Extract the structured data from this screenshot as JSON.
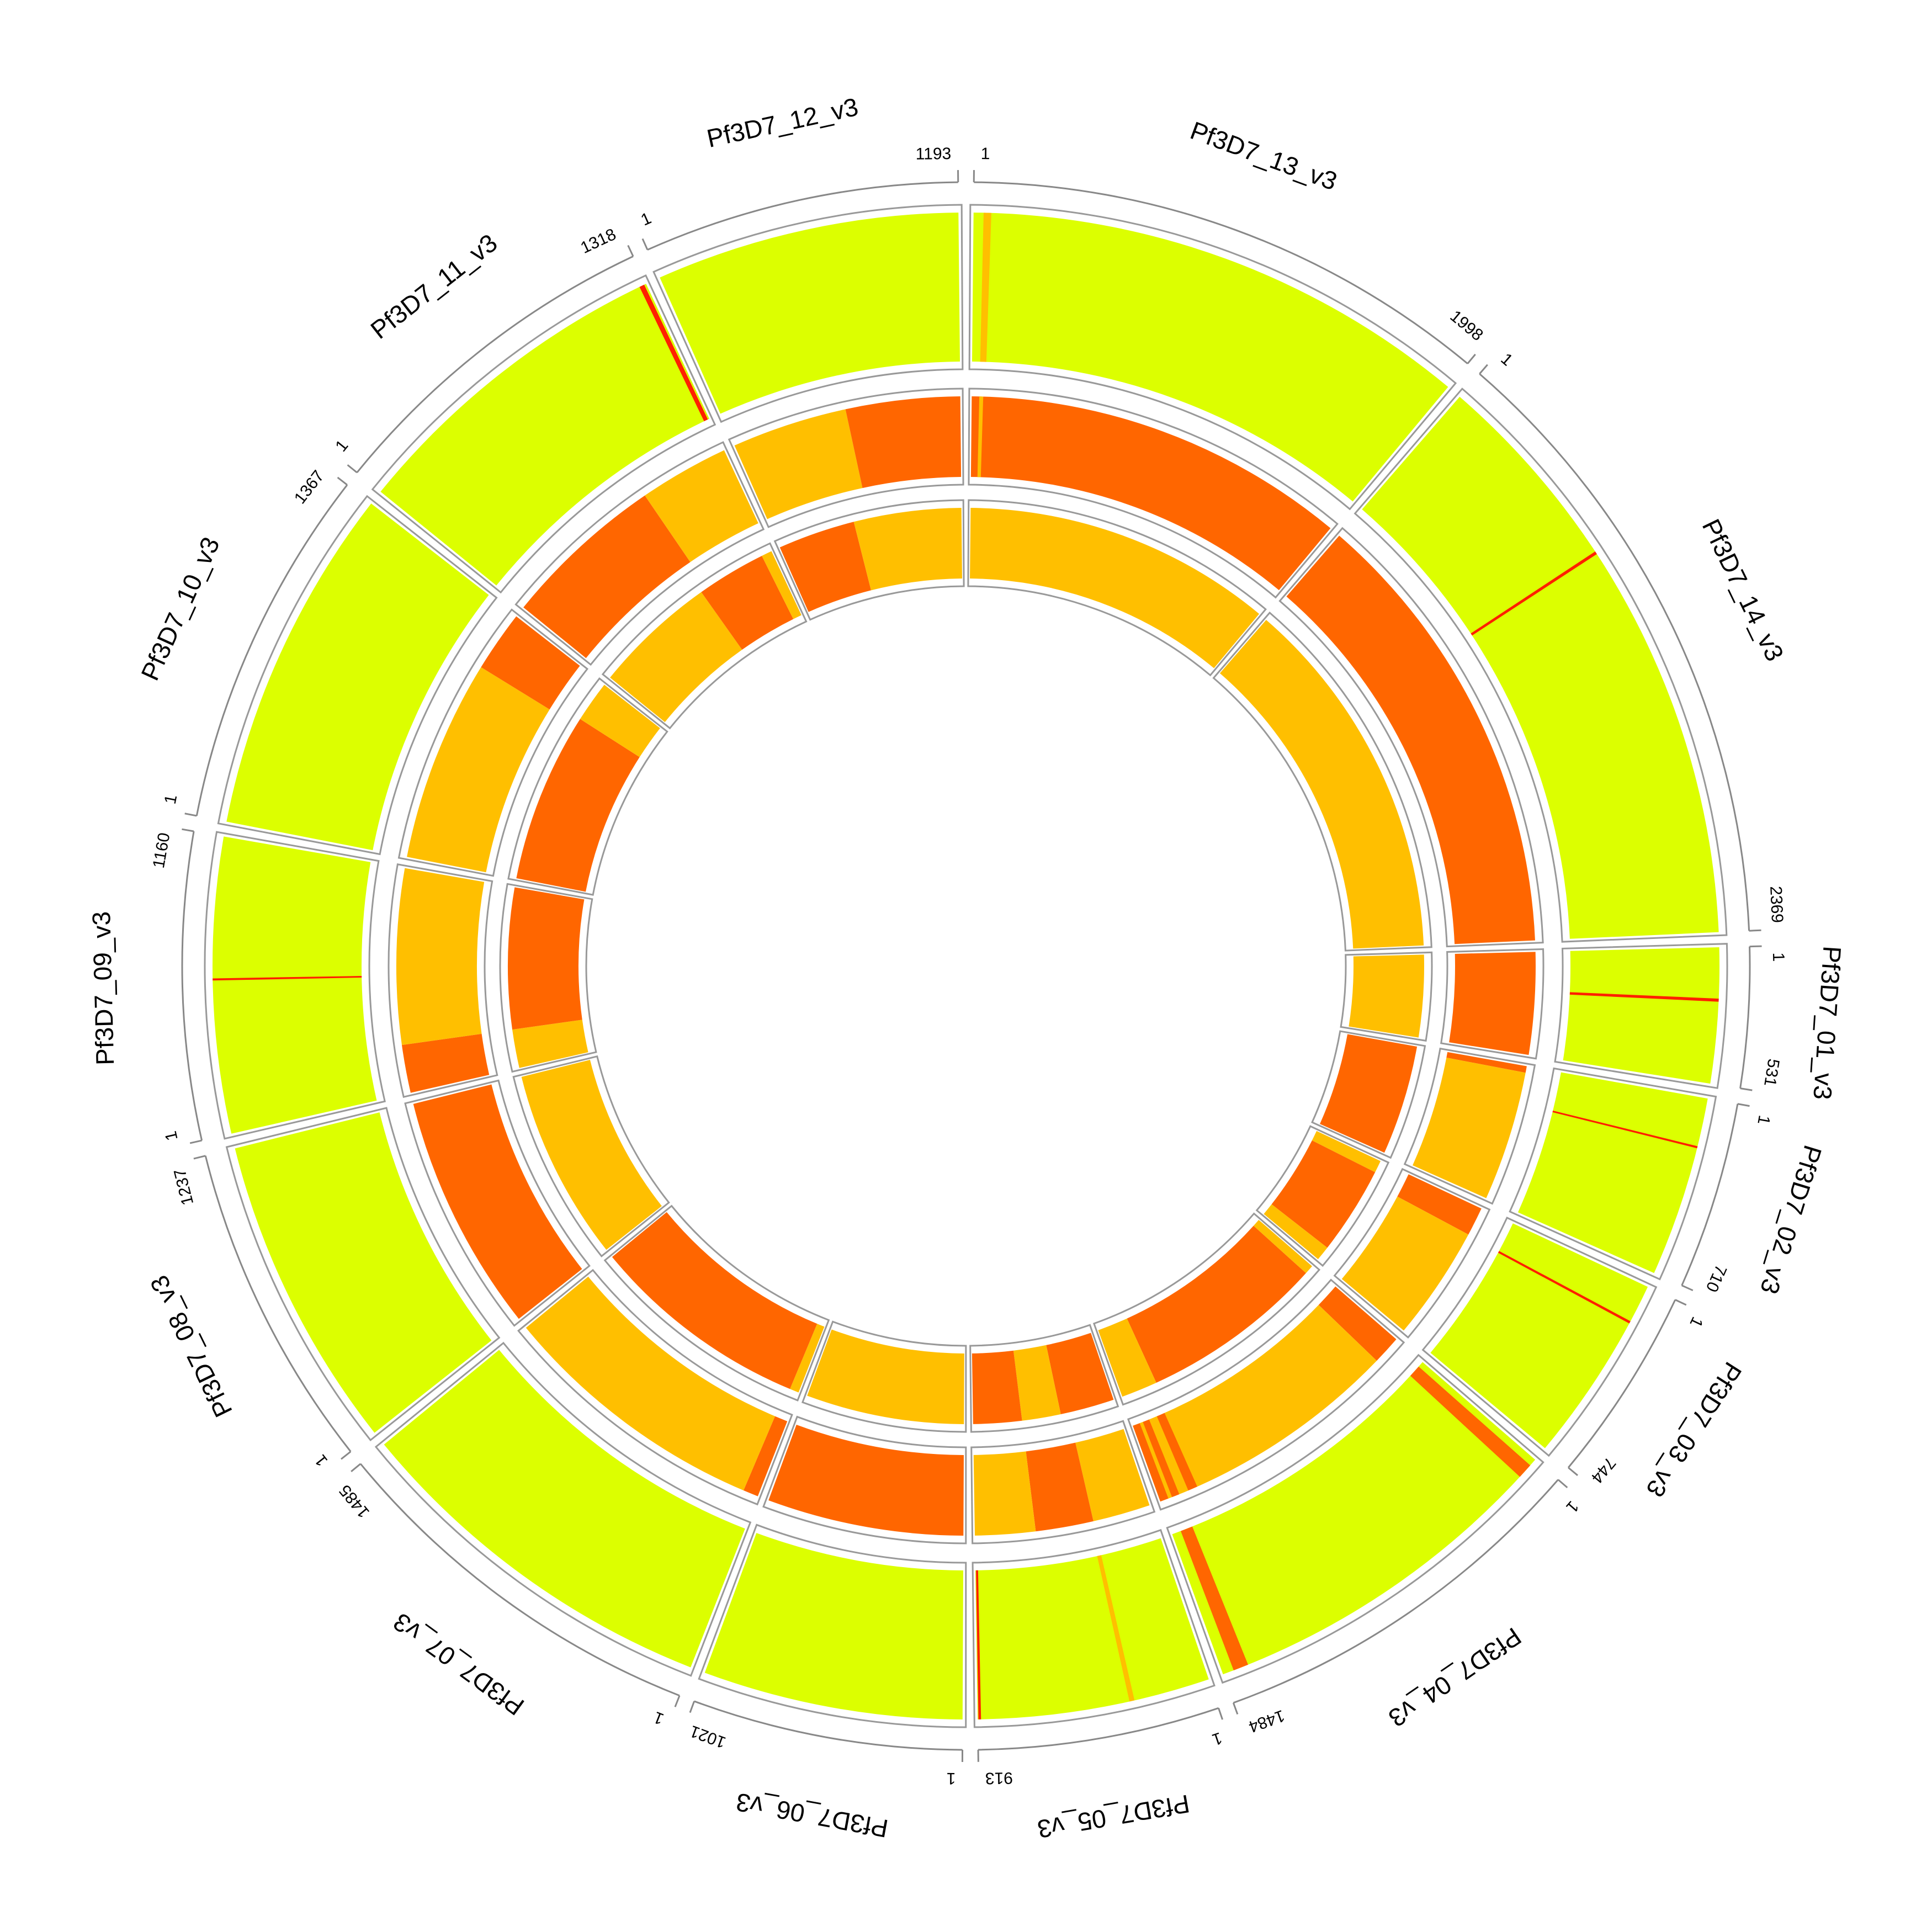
{
  "chart_data": {
    "type": "circos",
    "chromosomes": [
      {
        "name": "Pf3D7_01_v3",
        "start": 1,
        "end": 531,
        "tracks": [
          [
            {
              "start": 1,
              "end": 531,
              "color": "#dcff00"
            },
            {
              "start": 200,
              "end": 212,
              "color": "#ff2000"
            }
          ],
          [
            {
              "start": 1,
              "end": 531,
              "color": "#ff6600"
            }
          ],
          [
            {
              "start": 1,
              "end": 531,
              "color": "#ffbf00"
            }
          ]
        ]
      },
      {
        "name": "Pf3D7_02_v3",
        "start": 1,
        "end": 710,
        "tracks": [
          [
            {
              "start": 1,
              "end": 710,
              "color": "#dcff00"
            },
            {
              "start": 190,
              "end": 198,
              "color": "#ff2000"
            }
          ],
          [
            {
              "start": 1,
              "end": 35,
              "color": "#ff6600"
            },
            {
              "start": 35,
              "end": 710,
              "color": "#ffbf00"
            }
          ],
          [
            {
              "start": 1,
              "end": 710,
              "color": "#ff6600"
            }
          ]
        ]
      },
      {
        "name": "Pf3D7_03_v3",
        "start": 1,
        "end": 744,
        "tracks": [
          [
            {
              "start": 1,
              "end": 744,
              "color": "#dcff00"
            },
            {
              "start": 150,
              "end": 160,
              "color": "#ff2000"
            }
          ],
          [
            {
              "start": 1,
              "end": 150,
              "color": "#ff6600"
            },
            {
              "start": 150,
              "end": 744,
              "color": "#ffbf00"
            }
          ],
          [
            {
              "start": 1,
              "end": 80,
              "color": "#ffbf00"
            },
            {
              "start": 80,
              "end": 650,
              "color": "#ff6600"
            },
            {
              "start": 650,
              "end": 744,
              "color": "#ffbf00"
            }
          ]
        ]
      },
      {
        "name": "Pf3D7_04_v3",
        "start": 1,
        "end": 1484,
        "tracks": [
          [
            {
              "start": 1,
              "end": 1484,
              "color": "#dcff00"
            },
            {
              "start": 30,
              "end": 90,
              "color": "#ff6600"
            },
            {
              "start": 1380,
              "end": 1440,
              "color": "#ff6600"
            }
          ],
          [
            {
              "start": 1,
              "end": 150,
              "color": "#ff6600"
            },
            {
              "start": 150,
              "end": 1484,
              "color": "#ffbf00"
            },
            {
              "start": 1280,
              "end": 1330,
              "color": "#ff6600"
            },
            {
              "start": 1380,
              "end": 1420,
              "color": "#ff6600"
            },
            {
              "start": 1440,
              "end": 1484,
              "color": "#ff6600"
            }
          ],
          [
            {
              "start": 1,
              "end": 60,
              "color": "#ffbf00"
            },
            {
              "start": 60,
              "end": 1250,
              "color": "#ff6600"
            },
            {
              "start": 1250,
              "end": 1484,
              "color": "#ffbf00"
            }
          ]
        ]
      },
      {
        "name": "Pf3D7_05_v3",
        "start": 1,
        "end": 913,
        "tracks": [
          [
            {
              "start": 1,
              "end": 913,
              "color": "#dcff00"
            },
            {
              "start": 300,
              "end": 320,
              "color": "#ffbf00"
            },
            {
              "start": 900,
              "end": 910,
              "color": "#ff2000"
            }
          ],
          [
            {
              "start": 1,
              "end": 300,
              "color": "#ffbf00"
            },
            {
              "start": 300,
              "end": 600,
              "color": "#ff6600"
            },
            {
              "start": 600,
              "end": 913,
              "color": "#ffbf00"
            }
          ],
          [
            {
              "start": 1,
              "end": 350,
              "color": "#ff6600"
            },
            {
              "start": 350,
              "end": 600,
              "color": "#ffbf00"
            },
            {
              "start": 600,
              "end": 913,
              "color": "#ff6600"
            }
          ]
        ]
      },
      {
        "name": "Pf3D7_06_v3",
        "start": 1,
        "end": 1021,
        "tracks": [
          [
            {
              "start": 1,
              "end": 1021,
              "color": "#dcff00"
            }
          ],
          [
            {
              "start": 1,
              "end": 1021,
              "color": "#ff6600"
            }
          ],
          [
            {
              "start": 1,
              "end": 1021,
              "color": "#ffbf00"
            }
          ]
        ]
      },
      {
        "name": "Pf3D7_07_v3",
        "start": 1,
        "end": 1485,
        "tracks": [
          [
            {
              "start": 1,
              "end": 1485,
              "color": "#dcff00"
            }
          ],
          [
            {
              "start": 1,
              "end": 80,
              "color": "#ff6600"
            },
            {
              "start": 80,
              "end": 1485,
              "color": "#ffbf00"
            }
          ],
          [
            {
              "start": 1,
              "end": 60,
              "color": "#ffbf00"
            },
            {
              "start": 60,
              "end": 1485,
              "color": "#ff6600"
            }
          ]
        ]
      },
      {
        "name": "Pf3D7_08_v3",
        "start": 1,
        "end": 1237,
        "tracks": [
          [
            {
              "start": 1,
              "end": 1237,
              "color": "#dcff00"
            }
          ],
          [
            {
              "start": 1,
              "end": 1237,
              "color": "#ff6600"
            }
          ],
          [
            {
              "start": 1,
              "end": 1237,
              "color": "#ffbf00"
            }
          ]
        ]
      },
      {
        "name": "Pf3D7_09_v3",
        "start": 1,
        "end": 1160,
        "tracks": [
          [
            {
              "start": 1,
              "end": 1160,
              "color": "#dcff00"
            },
            {
              "start": 600,
              "end": 608,
              "color": "#ff2000"
            }
          ],
          [
            {
              "start": 1,
              "end": 250,
              "color": "#ff6600"
            },
            {
              "start": 250,
              "end": 1160,
              "color": "#ffbf00"
            }
          ],
          [
            {
              "start": 1,
              "end": 250,
              "color": "#ffbf00"
            },
            {
              "start": 250,
              "end": 1160,
              "color": "#ff6600"
            }
          ]
        ]
      },
      {
        "name": "Pf3D7_10_v3",
        "start": 1,
        "end": 1367,
        "tracks": [
          [
            {
              "start": 1,
              "end": 1367,
              "color": "#dcff00"
            }
          ],
          [
            {
              "start": 1,
              "end": 1050,
              "color": "#ffbf00"
            },
            {
              "start": 1050,
              "end": 1367,
              "color": "#ff6600"
            }
          ],
          [
            {
              "start": 1,
              "end": 1100,
              "color": "#ff6600"
            },
            {
              "start": 1100,
              "end": 1367,
              "color": "#ffbf00"
            }
          ]
        ]
      },
      {
        "name": "Pf3D7_11_v3",
        "start": 1,
        "end": 1318,
        "tracks": [
          [
            {
              "start": 1,
              "end": 1318,
              "color": "#dcff00"
            },
            {
              "start": 1290,
              "end": 1310,
              "color": "#ff2000"
            }
          ],
          [
            {
              "start": 1,
              "end": 850,
              "color": "#ff6600"
            },
            {
              "start": 850,
              "end": 1318,
              "color": "#ffbf00"
            }
          ],
          [
            {
              "start": 1,
              "end": 800,
              "color": "#ffbf00"
            },
            {
              "start": 800,
              "end": 1250,
              "color": "#ff6600"
            },
            {
              "start": 1250,
              "end": 1318,
              "color": "#ffbf00"
            }
          ]
        ]
      },
      {
        "name": "Pf3D7_12_v3",
        "start": 1,
        "end": 1193,
        "tracks": [
          [
            {
              "start": 1,
              "end": 1193,
              "color": "#dcff00"
            }
          ],
          [
            {
              "start": 1,
              "end": 600,
              "color": "#ffbf00"
            },
            {
              "start": 600,
              "end": 1193,
              "color": "#ff6600"
            }
          ],
          [
            {
              "start": 1,
              "end": 500,
              "color": "#ff6600"
            },
            {
              "start": 500,
              "end": 1193,
              "color": "#ffbf00"
            }
          ]
        ]
      },
      {
        "name": "Pf3D7_13_v3",
        "start": 1,
        "end": 1998,
        "tracks": [
          [
            {
              "start": 1,
              "end": 1998,
              "color": "#dcff00"
            },
            {
              "start": 40,
              "end": 70,
              "color": "#ffbf00"
            }
          ],
          [
            {
              "start": 1,
              "end": 1998,
              "color": "#ff6600"
            },
            {
              "start": 40,
              "end": 60,
              "color": "#ffbf00"
            }
          ],
          [
            {
              "start": 1,
              "end": 1998,
              "color": "#ffbf00"
            }
          ]
        ]
      },
      {
        "name": "Pf3D7_14_v3",
        "start": 1,
        "end": 2369,
        "tracks": [
          [
            {
              "start": 1,
              "end": 2369,
              "color": "#dcff00"
            },
            {
              "start": 800,
              "end": 812,
              "color": "#ff2000"
            }
          ],
          [
            {
              "start": 1,
              "end": 2369,
              "color": "#ff6600"
            }
          ],
          [
            {
              "start": 1,
              "end": 2369,
              "color": "#ffbf00"
            }
          ]
        ]
      }
    ]
  }
}
